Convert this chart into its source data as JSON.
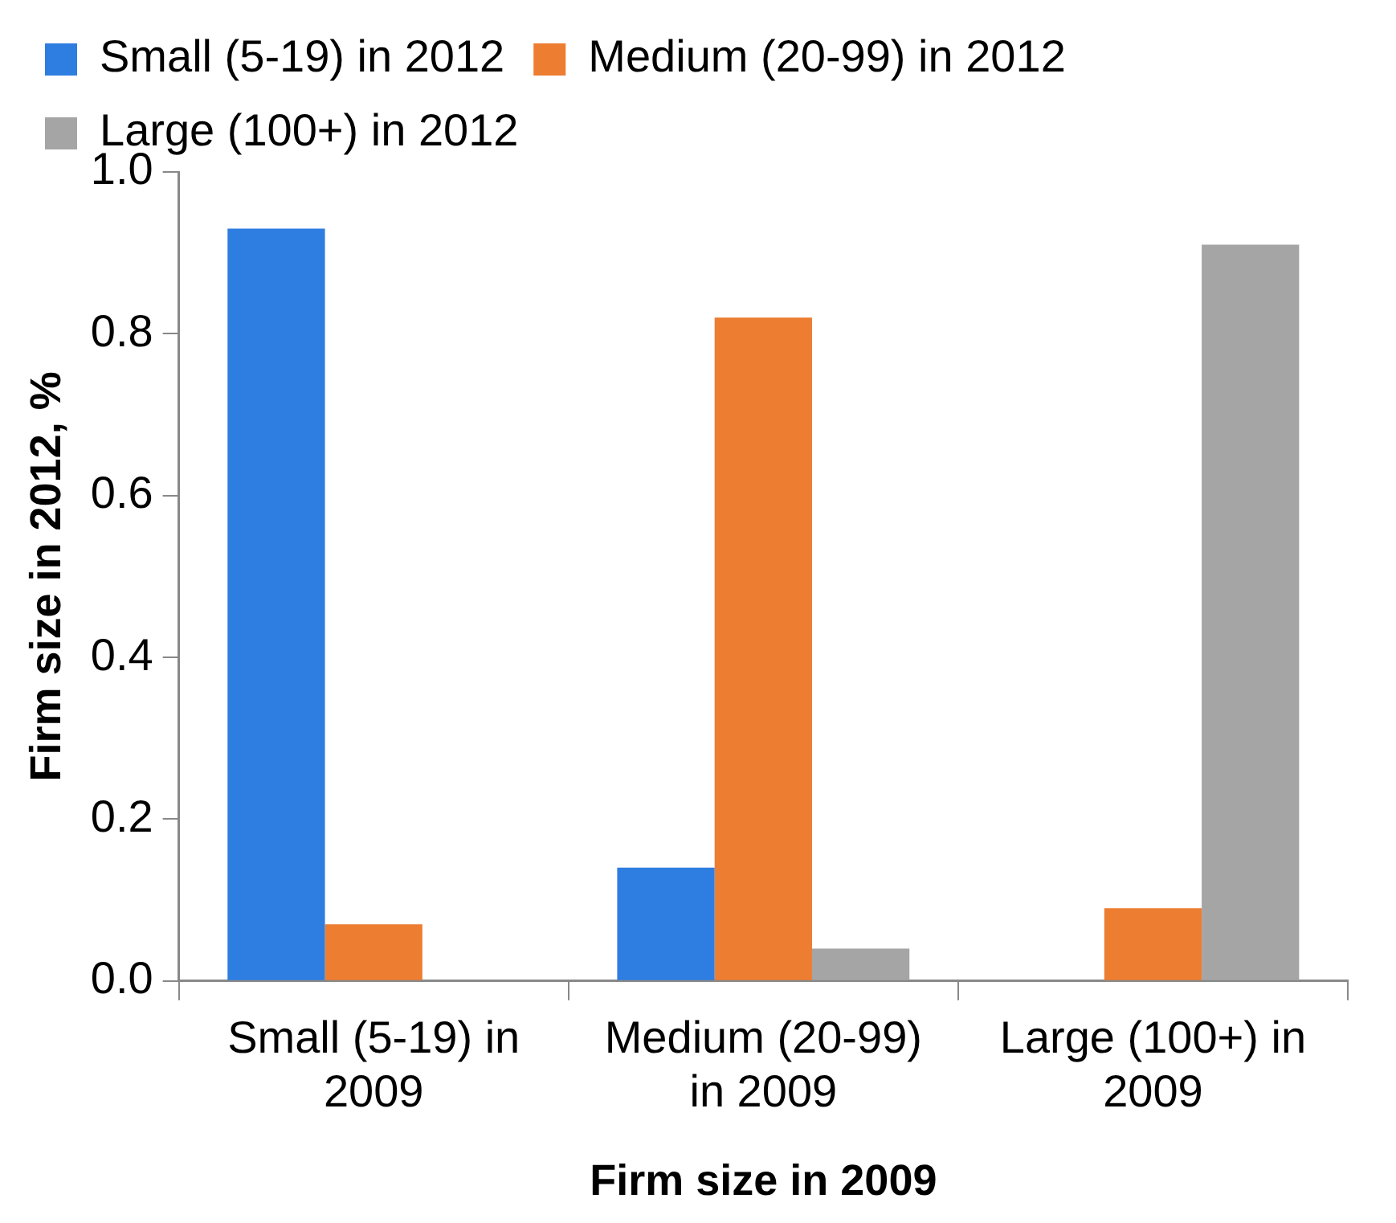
{
  "chart_data": {
    "type": "bar",
    "xlabel": "Firm size in 2009",
    "ylabel": "Firm size in 2012, %",
    "categories": [
      "Small (5-19) in 2009",
      "Medium (20-99)  in 2009",
      "Large (100+) in 2009"
    ],
    "series": [
      {
        "name": "Small (5-19) in 2012",
        "color": "#2e7de1",
        "values": [
          0.93,
          0.14,
          0
        ]
      },
      {
        "name": "Medium (20-99) in 2012",
        "color": "#ed7d31",
        "values": [
          0.07,
          0.82,
          0.09
        ]
      },
      {
        "name": "Large (100+) in 2012",
        "color": "#a5a5a5",
        "values": [
          0,
          0.04,
          0.91
        ]
      }
    ],
    "ylim": [
      0,
      1
    ],
    "yticks": [
      {
        "value": 0,
        "label": "0.0"
      },
      {
        "value": 0.2,
        "label": "0.2"
      },
      {
        "value": 0.4,
        "label": "0.4"
      },
      {
        "value": 0.6,
        "label": "0.6"
      },
      {
        "value": 0.8,
        "label": "0.8"
      },
      {
        "value": 1,
        "label": "1.0"
      }
    ],
    "grid": false,
    "legend": "top"
  }
}
